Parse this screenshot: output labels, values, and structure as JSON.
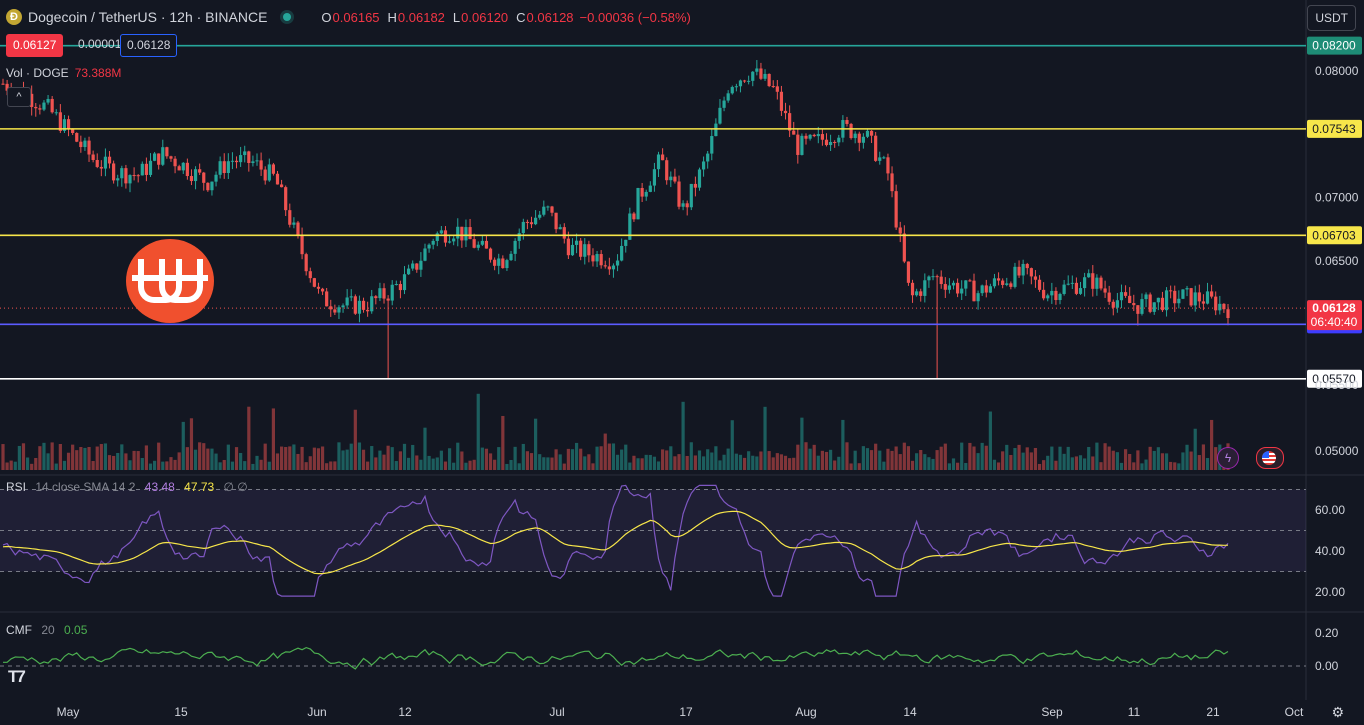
{
  "header": {
    "symbol_title": "Dogecoin / TetherUS · 12h · BINANCE",
    "coin_icon": "dogecoin-icon",
    "ohlc": [
      {
        "label": "O",
        "value": "0.06165"
      },
      {
        "label": "H",
        "value": "0.06182"
      },
      {
        "label": "L",
        "value": "0.06120"
      },
      {
        "label": "C",
        "value": "0.06128"
      },
      {
        "label": "",
        "value": "−0.00036 (−0.58%)"
      }
    ],
    "bid": "0.06127",
    "spread": "0.00001",
    "ask": "0.06128",
    "currency_button": "USDT"
  },
  "volume": {
    "label": "Vol · DOGE",
    "value": "73.388M",
    "collapse_icon": "chevron-up-icon"
  },
  "price_axis": {
    "ticks": [
      "0.08000",
      "0.07000",
      "0.06500",
      "0.05000"
    ],
    "partial_tick": "0.05500"
  },
  "levels": [
    {
      "price": "0.08200",
      "value": 0.082,
      "color": "#26a69a",
      "label_bg": "#1e8c76",
      "label_fg": "#ffffff"
    },
    {
      "price": "0.07543",
      "value": 0.07543,
      "color": "#f7e64a",
      "label_bg": "#f7e64a",
      "label_fg": "#131722"
    },
    {
      "price": "0.06703",
      "value": 0.06703,
      "color": "#f7e64a",
      "label_bg": "#f7e64a",
      "label_fg": "#131722"
    },
    {
      "price": "0.06000",
      "value": 0.06,
      "color": "#5b5bff",
      "label_bg": "#3d3dff",
      "label_fg": "#ffffff"
    },
    {
      "price": "0.05570",
      "value": 0.0557,
      "color": "#ffffff",
      "label_bg": "#ffffff",
      "label_fg": "#131722"
    }
  ],
  "last_price": {
    "price": "0.06128",
    "countdown": "06:40:40",
    "color": "#f23645"
  },
  "time_axis": [
    "May",
    "15",
    "Jun",
    "12",
    "Jul",
    "17",
    "Aug",
    "14",
    "Sep",
    "11",
    "21",
    "Oct"
  ],
  "rsi": {
    "label": "RSI",
    "params": "14 close SMA 14 2",
    "rsi_value": "43.48",
    "sma_value": "47.73",
    "extra": "∅ ∅",
    "ticks": [
      "60.00",
      "40.00",
      "20.00"
    ],
    "upper_band": 70,
    "lower_band": 30
  },
  "cmf": {
    "label": "CMF",
    "params": "20",
    "value": "0.05",
    "ticks": [
      "0.20",
      "0.00"
    ]
  },
  "icons": {
    "settings": "gear-icon",
    "alert": "lightning-icon",
    "flag": "us-flag-icon",
    "brand": "tradingview-logo",
    "watermark": "brand-logo"
  },
  "chart_data": {
    "type": "candlestick",
    "price_axis_range": [
      0.0487,
      0.0835
    ],
    "series": [
      {
        "name": "price",
        "approx_close": [
          0.079,
          0.0782,
          0.077,
          0.075,
          0.073,
          0.072,
          0.0718,
          0.0735,
          0.0725,
          0.0712,
          0.073,
          0.0728,
          0.0715,
          0.0665,
          0.062,
          0.0615,
          0.0615,
          0.0625,
          0.064,
          0.067,
          0.0675,
          0.066,
          0.065,
          0.068,
          0.069,
          0.066,
          0.0655,
          0.065,
          0.07,
          0.073,
          0.069,
          0.073,
          0.079,
          0.08,
          0.0785,
          0.074,
          0.0745,
          0.0755,
          0.075,
          0.072,
          0.062,
          0.0638,
          0.063,
          0.0625,
          0.0635,
          0.064,
          0.0625,
          0.063,
          0.0635,
          0.062,
          0.0615,
          0.0618,
          0.0622,
          0.062,
          0.06128
        ]
      }
    ]
  }
}
